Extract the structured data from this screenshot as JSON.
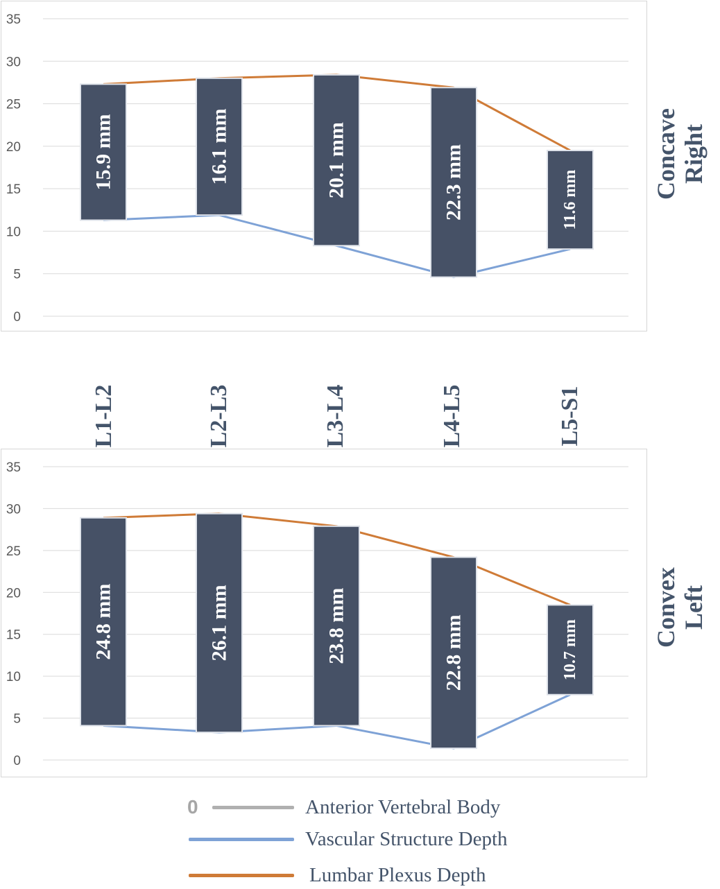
{
  "categories": [
    "L1-L2",
    "L2-L3",
    "L3-L4",
    "L4-L5",
    "L5-S1"
  ],
  "colors": {
    "bar": "#465166",
    "bar_edge": "#dfe3ea",
    "vascular": "#7ea2d6",
    "plexus": "#cf7b37",
    "anterior": "#b0b0b0",
    "grid": "#d9d9d9",
    "tick": "#595959",
    "title": "#44546a"
  },
  "legend": {
    "zero_marker": "0",
    "items": [
      {
        "label": "Anterior Vertebral Body",
        "color": "#b0b0b0"
      },
      {
        "label": "Vascular  Structure Depth",
        "color": "#7ea2d6"
      },
      {
        "label": "Lumbar Plexus Depth",
        "color": "#cf7b37"
      }
    ]
  },
  "chart_data": [
    {
      "type": "line",
      "title_lines": [
        "Concave",
        "Right"
      ],
      "categories": [
        "L1-L2",
        "L2-L3",
        "L3-L4",
        "L4-L5",
        "L5-S1"
      ],
      "ylim": [
        0,
        35
      ],
      "yticks": [
        0,
        5,
        10,
        15,
        20,
        25,
        30,
        35
      ],
      "grid": true,
      "series": [
        {
          "name": "Anterior Vertebral Body",
          "values": [
            0,
            0,
            0,
            0,
            0
          ]
        },
        {
          "name": "Vascular  Structure Depth",
          "values": [
            11.3,
            11.9,
            8.3,
            4.6,
            7.9
          ]
        },
        {
          "name": "Lumbar Plexus Depth",
          "values": [
            27.3,
            28.0,
            28.4,
            26.9,
            19.5
          ]
        }
      ],
      "bar_labels": [
        "15.9 mm",
        "16.1 mm",
        "20.1 mm",
        "22.3 mm",
        "11.6 mm"
      ]
    },
    {
      "type": "line",
      "title_lines": [
        "Convex",
        "Left"
      ],
      "categories": [
        "L1-L2",
        "L2-L3",
        "L3-L4",
        "L4-L5",
        "L5-S1"
      ],
      "ylim": [
        0,
        35
      ],
      "yticks": [
        0,
        5,
        10,
        15,
        20,
        25,
        30,
        35
      ],
      "grid": true,
      "series": [
        {
          "name": "Anterior Vertebral Body",
          "values": [
            0,
            0,
            0,
            0,
            0
          ]
        },
        {
          "name": "Vascular  Structure Depth",
          "values": [
            4.1,
            3.3,
            4.1,
            1.4,
            7.8
          ]
        },
        {
          "name": "Lumbar Plexus Depth",
          "values": [
            28.9,
            29.4,
            27.9,
            24.2,
            18.5
          ]
        }
      ],
      "bar_labels": [
        "24.8 mm",
        "26.1 mm",
        "23.8 mm",
        "22.8 mm",
        "10.7 mm"
      ]
    }
  ]
}
